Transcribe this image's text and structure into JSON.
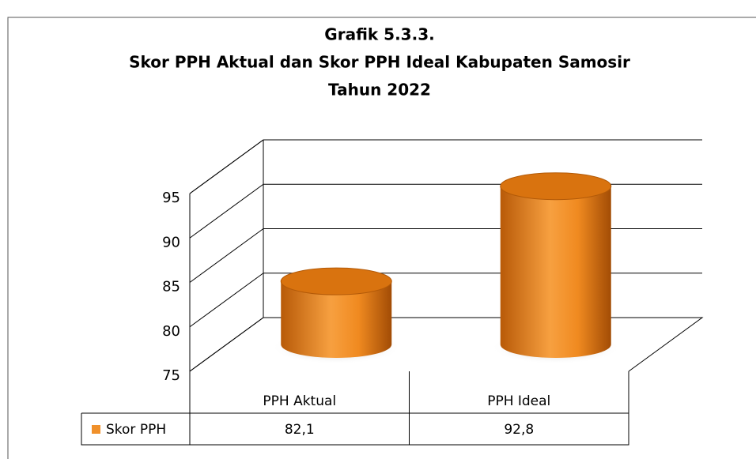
{
  "chart_data": {
    "type": "bar3d",
    "title": [
      "Grafik 5.3.3.",
      "Skor PPH Aktual dan Skor PPH Ideal Kabupaten Samosir",
      "Tahun 2022"
    ],
    "categories": [
      "PPH Aktual",
      "PPH Ideal"
    ],
    "series": [
      {
        "name": "Skor PPH",
        "color": "#f0902a",
        "values": [
          82.1,
          92.8
        ],
        "value_labels": [
          "82,1",
          "92,8"
        ]
      }
    ],
    "ylim": [
      75,
      95
    ],
    "yticks": [
      75,
      80,
      85,
      90,
      95
    ],
    "grid": true
  }
}
